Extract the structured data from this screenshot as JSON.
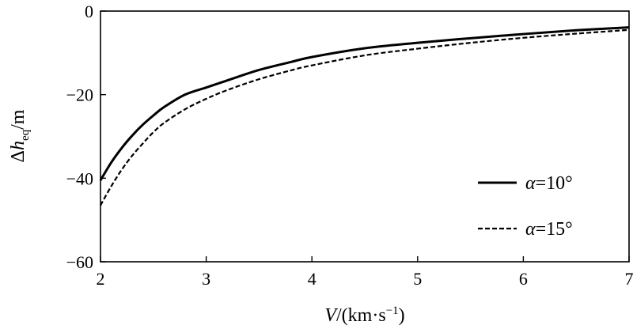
{
  "chart_data": {
    "type": "line",
    "title": "",
    "xlabel": {
      "var": "V",
      "unit_prefix": "/(km·s",
      "unit_exp": "−1",
      "unit_suffix": ")"
    },
    "ylabel": {
      "delta": "Δ",
      "var": "h",
      "sub": "eq",
      "unit": "/m"
    },
    "xlim": [
      2,
      7
    ],
    "ylim": [
      -60,
      0
    ],
    "xticks": [
      2,
      3,
      4,
      5,
      6,
      7
    ],
    "yticks": [
      0,
      -20,
      -40,
      -60
    ],
    "grid": false,
    "legend_position": "right",
    "series": [
      {
        "name": "α=10°",
        "style": "solid",
        "color": "#000000",
        "x": [
          2.0,
          2.1,
          2.2,
          2.3,
          2.4,
          2.5,
          2.6,
          2.8,
          3.0,
          3.2,
          3.5,
          3.8,
          4.0,
          4.5,
          5.0,
          5.5,
          6.0,
          6.5,
          7.0
        ],
        "y": [
          -40.5,
          -36.3,
          -32.8,
          -29.8,
          -27.2,
          -25.0,
          -23.0,
          -20.0,
          -18.3,
          -16.6,
          -14.1,
          -12.2,
          -11.0,
          -8.9,
          -7.6,
          -6.5,
          -5.5,
          -4.6,
          -3.9
        ]
      },
      {
        "name": "α=15°",
        "style": "dashed",
        "color": "#000000",
        "x": [
          2.0,
          2.1,
          2.2,
          2.3,
          2.4,
          2.5,
          2.6,
          2.8,
          3.0,
          3.2,
          3.5,
          3.8,
          4.0,
          4.5,
          5.0,
          5.5,
          6.0,
          6.5,
          7.0
        ],
        "y": [
          -46.5,
          -42.0,
          -38.0,
          -34.6,
          -31.7,
          -29.0,
          -26.8,
          -23.5,
          -21.0,
          -18.9,
          -16.3,
          -14.2,
          -13.0,
          -10.6,
          -9.0,
          -7.6,
          -6.4,
          -5.4,
          -4.5
        ]
      }
    ]
  }
}
